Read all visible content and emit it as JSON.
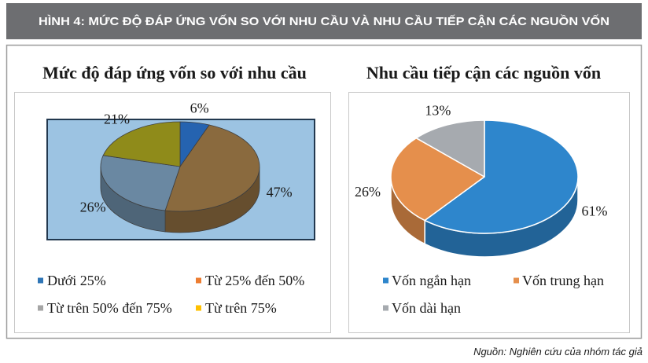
{
  "figure": {
    "banner": "HÌNH 4: MỨC ĐỘ ĐÁP ỨNG VỐN SO VỚI NHU CẦU VÀ NHU CẦU TIẾP CẬN CÁC NGUỒN VỐN",
    "source": "Nguồn: Nghiên cứu của nhóm tác giả",
    "banner_color": "#6d6e71",
    "frame_color": "#9d9d9d"
  },
  "chart_data": [
    {
      "type": "pie",
      "three_d": true,
      "title": "Mức độ đáp ứng vốn so với nhu cầu",
      "categories": [
        "Dưới 25%",
        "Từ 25% đến 50%",
        "Từ trên 50% đến 75%",
        "Từ trên 75%"
      ],
      "values": [
        6,
        47,
        26,
        21
      ],
      "unit": "%",
      "slice_colors": [
        "#2563b0",
        "#8a6a3e",
        "#6a88a2",
        "#8f8b1a"
      ],
      "legend_colors": [
        "#2e75b6",
        "#ed7d31",
        "#a5a5a5",
        "#ffc000"
      ],
      "plot_background": "#9cc3e2",
      "legend_placement": "bottom"
    },
    {
      "type": "pie",
      "three_d": true,
      "title": "Nhu cầu tiếp cận các nguồn vốn",
      "categories": [
        "Vốn ngắn hạn",
        "Vốn trung hạn",
        "Vốn dài hạn"
      ],
      "values": [
        61,
        26,
        13
      ],
      "unit": "%",
      "slice_colors": [
        "#2e86cc",
        "#e58f4c",
        "#a6aaaf"
      ],
      "legend_colors": [
        "#2e86cc",
        "#e58f4c",
        "#a6aaaf"
      ],
      "legend_placement": "bottom"
    }
  ]
}
